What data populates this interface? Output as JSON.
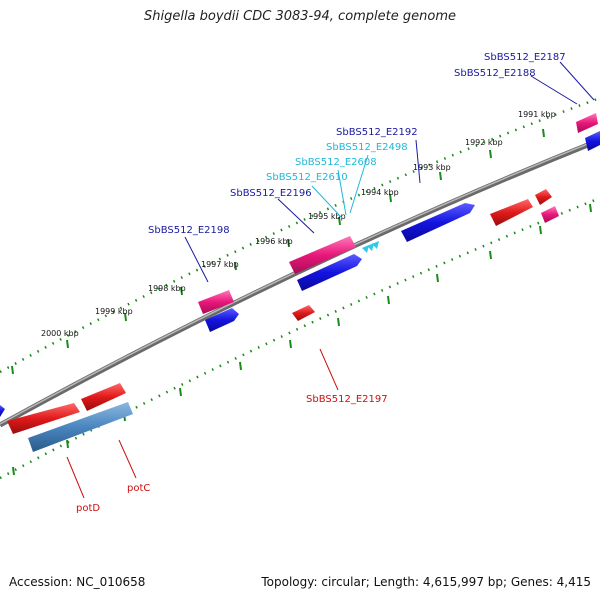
{
  "title": "Shigella boydii CDC 3083-94, complete genome",
  "accession_label": "Accession: NC_010658",
  "topology_label": "Topology: circular; Length: 4,615,997 bp; Genes: 4,415",
  "colors": {
    "backbone": "#888888",
    "tick": "#1a8a1a",
    "gene_forward": "#e8177a",
    "gene_reverse": "#e01a1a",
    "cds": "#1414e0",
    "rna": "#2ec8e8",
    "label_blue": "#1a1aa0",
    "label_cyan": "#22b8d8",
    "label_red": "#cc1010"
  },
  "kbp_labels": [
    "1991 kbp",
    "1992 kbp",
    "1993 kbp",
    "1994 kbp",
    "1995 kbp",
    "1996 kbp",
    "1997 kbp",
    "1998 kbp",
    "1999 kbp",
    "2000 kbp"
  ],
  "gene_labels": [
    {
      "text": "SbBS512_E2187",
      "color": "label_blue"
    },
    {
      "text": "SbBS512_E2188",
      "color": "label_blue"
    },
    {
      "text": "SbBS512_E2192",
      "color": "label_blue"
    },
    {
      "text": "SbBS512_E2498",
      "color": "label_cyan"
    },
    {
      "text": "SbBS512_E2608",
      "color": "label_cyan"
    },
    {
      "text": "SbBS512_E2610",
      "color": "label_cyan"
    },
    {
      "text": "SbBS512_E2196",
      "color": "label_blue"
    },
    {
      "text": "SbBS512_E2198",
      "color": "label_blue"
    },
    {
      "text": "SbBS512_E2197",
      "color": "label_red"
    },
    {
      "text": "potC",
      "color": "label_red"
    },
    {
      "text": "potD",
      "color": "label_red"
    }
  ]
}
